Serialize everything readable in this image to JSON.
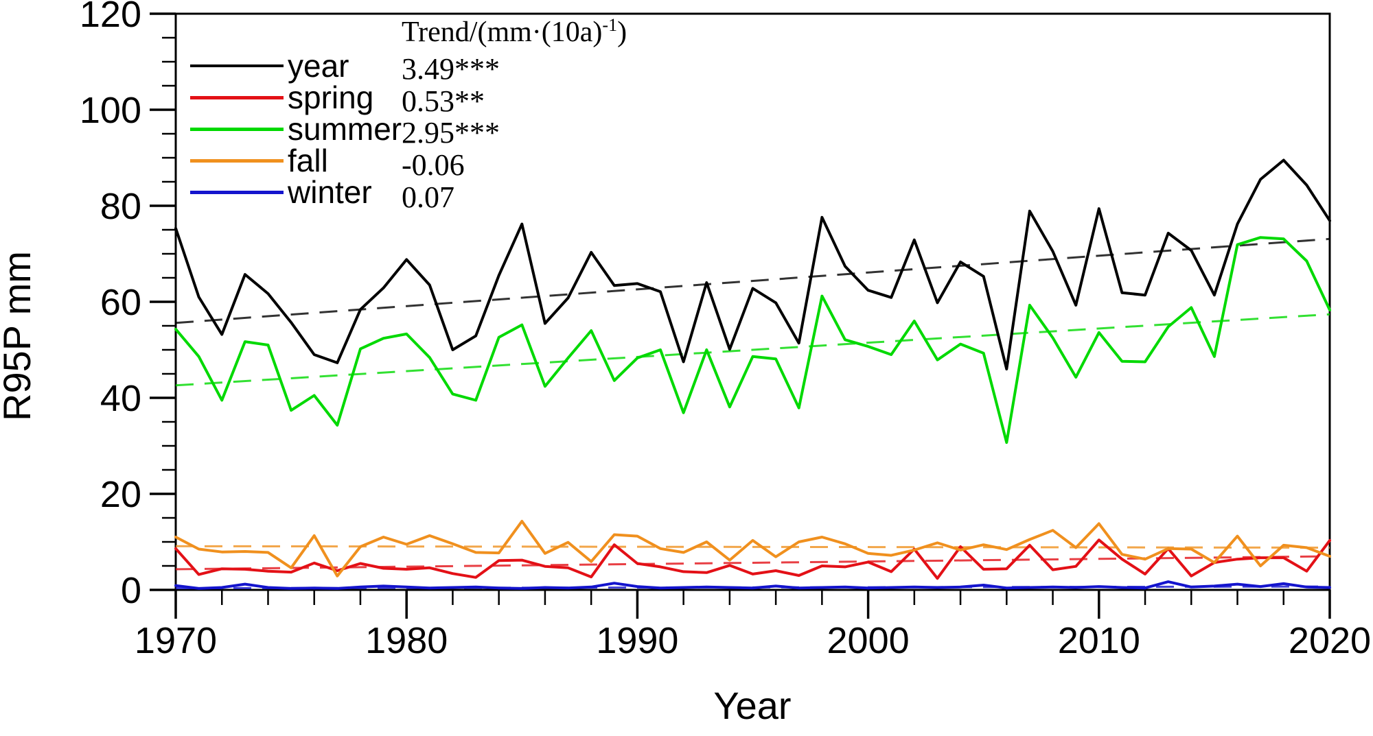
{
  "chart_data": {
    "type": "line",
    "title": "",
    "xlabel": "Year",
    "ylabel": "R95P mm",
    "x_range": [
      1970,
      2020
    ],
    "x_step": 1,
    "ylim": [
      0,
      120
    ],
    "y_major_ticks": [
      0,
      20,
      40,
      60,
      80,
      100,
      120
    ],
    "y_minor_step": 5,
    "x_major_ticks": [
      1970,
      1980,
      1990,
      2000,
      2010,
      2020
    ],
    "x_minor_step": 2,
    "grid": false,
    "legend_position": "top-left-inside",
    "trend_header_pre": "Trend/(mm·(10a)",
    "trend_header_sup": "-1",
    "trend_header_post": ")",
    "series": [
      {
        "name": "year",
        "color": "#000000",
        "trend_label": "3.49***",
        "trend_per_decade": 3.49,
        "trend_start": 55.6,
        "trend_end": 73.1,
        "values": [
          75.3,
          61.0,
          53.2,
          65.7,
          61.7,
          55.7,
          49.0,
          47.3,
          58.4,
          62.9,
          68.8,
          63.5,
          50.0,
          52.9,
          65.5,
          76.2,
          55.5,
          60.8,
          70.3,
          63.4,
          63.8,
          62.1,
          47.5,
          64.0,
          50.1,
          62.8,
          59.8,
          51.4,
          77.6,
          67.4,
          62.4,
          60.9,
          72.9,
          59.8,
          68.3,
          65.3,
          46.0,
          78.9,
          70.5,
          59.3,
          79.4,
          61.9,
          61.4,
          74.3,
          70.7,
          61.4,
          76.2,
          85.5,
          89.5,
          84.3,
          76.9
        ]
      },
      {
        "name": "spring",
        "color": "#e31016",
        "trend_label": "0.53**",
        "trend_per_decade": 0.53,
        "trend_start": 4.3,
        "trend_end": 7.0,
        "values": [
          8.6,
          3.2,
          4.4,
          4.3,
          3.9,
          3.7,
          5.6,
          4.0,
          5.5,
          4.5,
          4.3,
          4.6,
          3.4,
          2.6,
          6.1,
          6.2,
          4.9,
          4.6,
          2.7,
          9.4,
          5.5,
          4.8,
          3.8,
          3.6,
          5.1,
          3.3,
          4.0,
          3.0,
          5.0,
          4.8,
          5.8,
          3.8,
          8.5,
          2.4,
          9.0,
          4.3,
          4.4,
          9.3,
          4.2,
          4.9,
          10.4,
          6.4,
          3.3,
          8.6,
          2.9,
          5.7,
          6.4,
          6.7,
          6.7,
          3.9,
          10.3
        ]
      },
      {
        "name": "summer",
        "color": "#00d900",
        "trend_label": "2.95***",
        "trend_per_decade": 2.95,
        "trend_start": 42.6,
        "trend_end": 57.4,
        "values": [
          54.3,
          48.6,
          39.5,
          51.7,
          51.0,
          37.4,
          40.5,
          34.3,
          50.2,
          52.4,
          53.3,
          48.4,
          40.8,
          39.5,
          52.6,
          55.2,
          42.4,
          48.3,
          54.0,
          43.6,
          48.3,
          50.0,
          36.9,
          50.0,
          38.1,
          48.6,
          48.1,
          37.9,
          61.2,
          52.1,
          50.7,
          49.0,
          56.0,
          47.9,
          51.2,
          49.3,
          30.7,
          59.3,
          52.5,
          44.3,
          53.6,
          47.6,
          47.5,
          54.8,
          58.8,
          48.6,
          71.9,
          73.4,
          73.1,
          68.5,
          58.3
        ]
      },
      {
        "name": "fall",
        "color": "#f0901e",
        "trend_label": "-0.06",
        "trend_per_decade": -0.06,
        "trend_start": 9.1,
        "trend_end": 8.8,
        "values": [
          11.0,
          8.5,
          7.9,
          8.0,
          7.8,
          4.6,
          11.3,
          2.9,
          9.0,
          11.0,
          9.5,
          11.3,
          9.6,
          7.8,
          7.7,
          14.3,
          7.6,
          9.9,
          5.9,
          11.5,
          11.2,
          8.6,
          7.8,
          10.0,
          6.2,
          10.3,
          6.9,
          10.0,
          11.0,
          9.6,
          7.6,
          7.2,
          8.3,
          9.8,
          8.3,
          9.4,
          8.4,
          10.5,
          12.4,
          8.8,
          13.8,
          7.4,
          6.4,
          8.6,
          8.5,
          5.7,
          11.2,
          5.0,
          9.3,
          8.8,
          7.0
        ]
      },
      {
        "name": "winter",
        "color": "#1414cd",
        "trend_label": "0.07",
        "trend_per_decade": 0.07,
        "trend_start": 0.35,
        "trend_end": 0.7,
        "values": [
          0.9,
          0.3,
          0.5,
          1.2,
          0.5,
          0.3,
          0.4,
          0.3,
          0.6,
          0.8,
          0.6,
          0.4,
          0.5,
          0.6,
          0.4,
          0.3,
          0.5,
          0.4,
          0.6,
          1.4,
          0.7,
          0.4,
          0.5,
          0.6,
          0.5,
          0.4,
          0.8,
          0.4,
          0.5,
          0.6,
          0.4,
          0.5,
          0.6,
          0.5,
          0.6,
          1.0,
          0.4,
          0.5,
          0.6,
          0.5,
          0.7,
          0.5,
          0.4,
          1.7,
          0.6,
          0.8,
          1.2,
          0.7,
          1.3,
          0.6,
          0.5
        ]
      }
    ]
  }
}
